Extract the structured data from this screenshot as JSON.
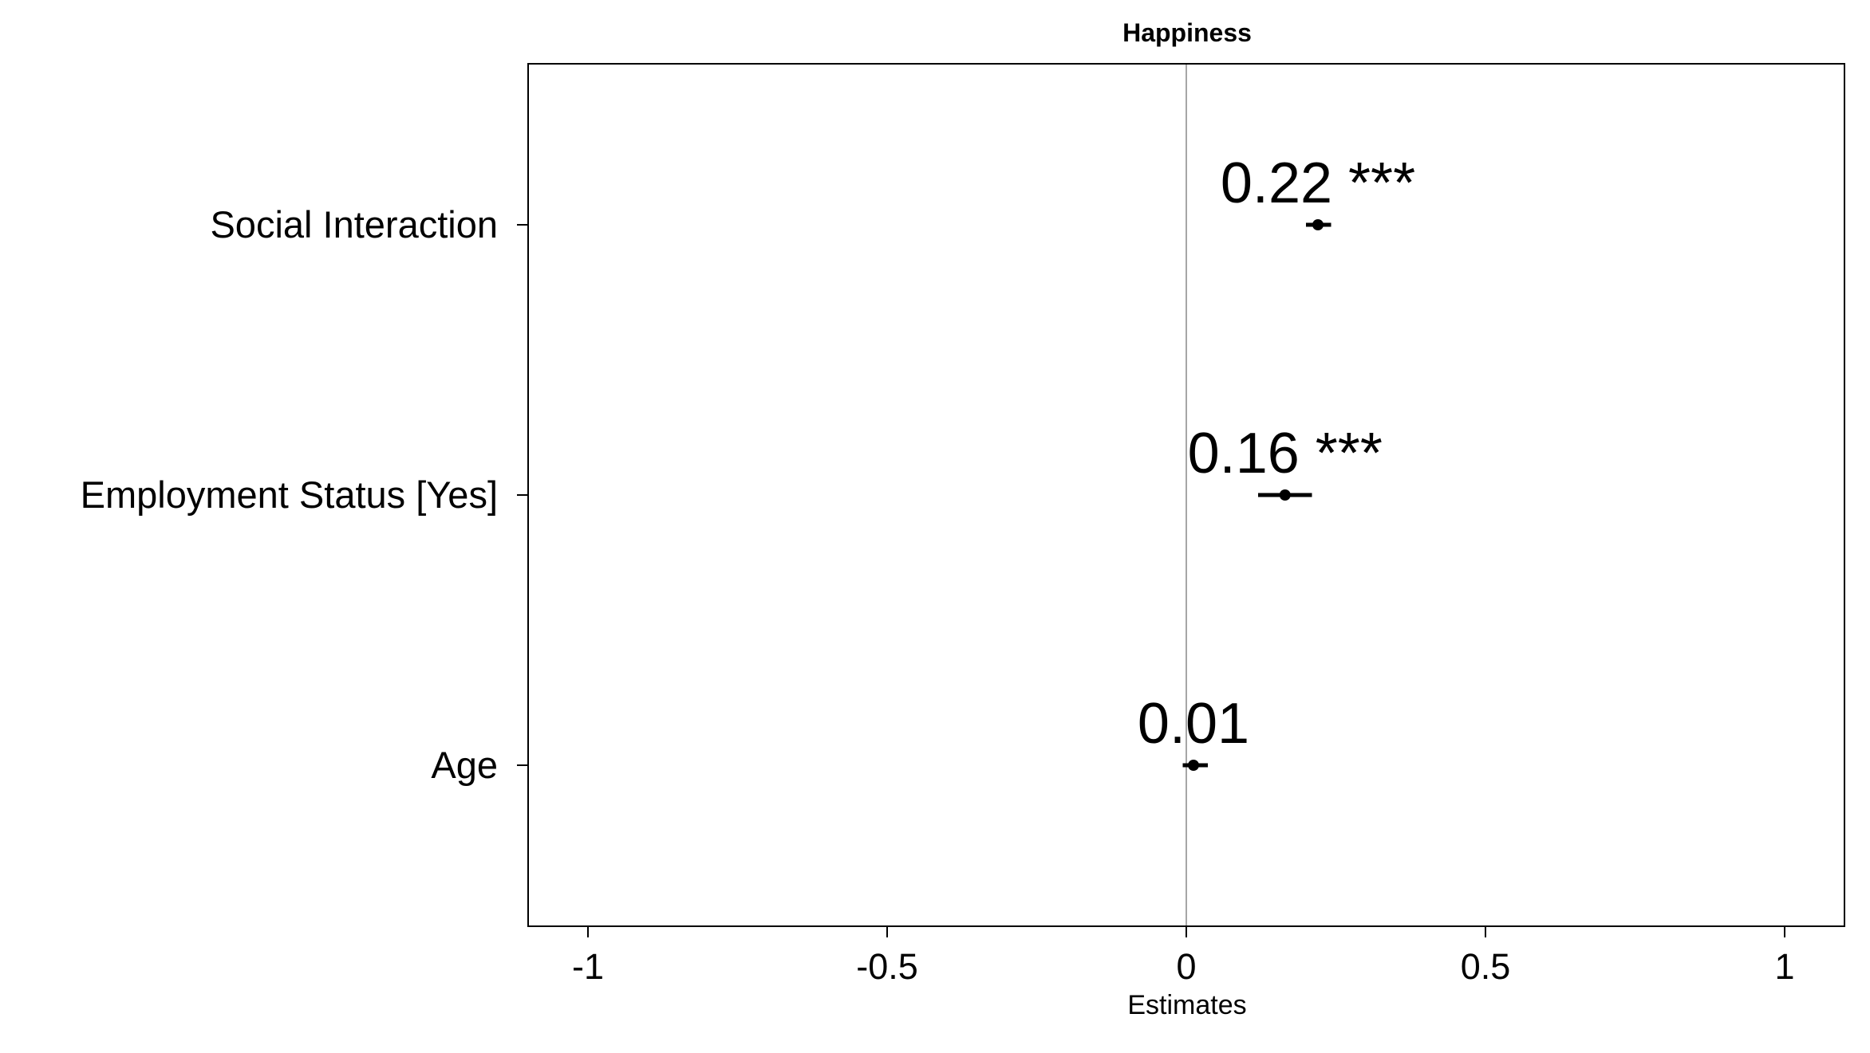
{
  "chart_data": {
    "type": "scatter",
    "subtype": "coefficient-plot",
    "title": "Happiness",
    "xlabel": "Estimates",
    "ylabel": "",
    "xlim": [
      -1.1,
      1.1
    ],
    "x_ticks": [
      -1,
      -0.5,
      0,
      0.5,
      1
    ],
    "x_tick_labels": [
      "-1",
      "-0.5",
      "0",
      "0.5",
      "1"
    ],
    "reference_line": 0,
    "grid": false,
    "categories": [
      "Social Interaction",
      "Employment Status [Yes]",
      "Age"
    ],
    "estimates": [
      0.22,
      0.165,
      0.012
    ],
    "ci_low": [
      0.2,
      0.12,
      -0.006
    ],
    "ci_high": [
      0.242,
      0.21,
      0.036
    ],
    "labels": [
      "0.22 ***",
      "0.16 ***",
      "0.01"
    ],
    "colors": {
      "point": "#000000",
      "frame": "#000000",
      "reference_line": "#a6a6a6"
    }
  }
}
